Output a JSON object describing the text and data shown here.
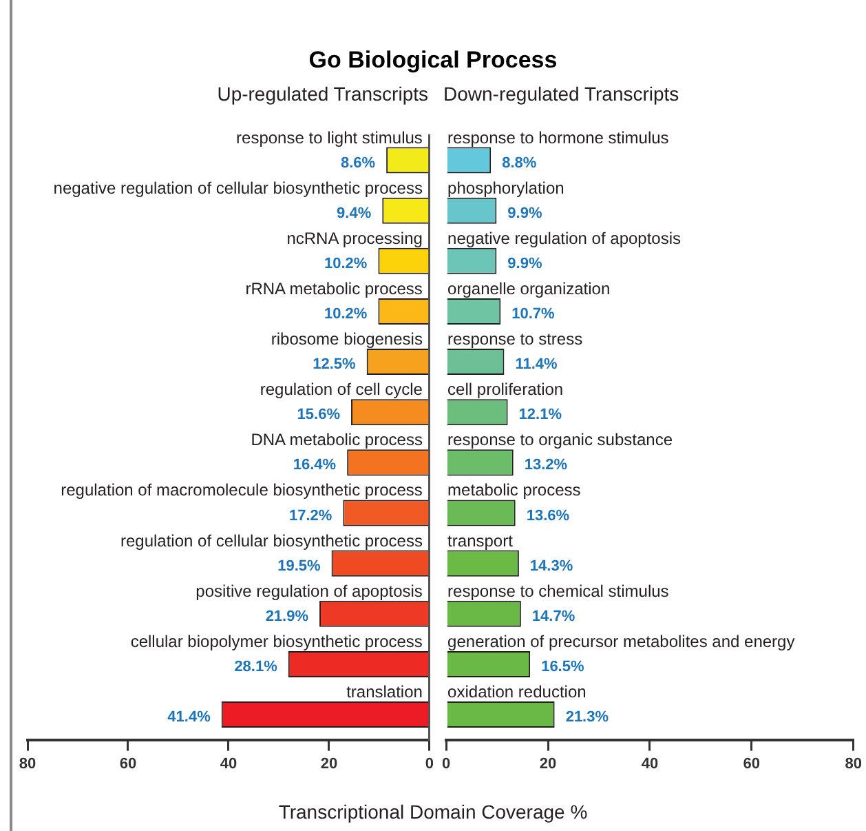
{
  "chart_data": [
    {
      "type": "bar",
      "orientation": "horizontal",
      "title": "Go Biological Process",
      "subtitle": "Up-regulated Transcripts",
      "xlabel": "Transcriptional Domain Coverage %",
      "categories": [
        "response to light stimulus",
        "negative regulation of cellular biosynthetic process",
        "ncRNA processing",
        "rRNA metabolic process",
        "ribosome biogenesis",
        "regulation of cell cycle",
        "DNA metabolic process",
        "regulation of macromolecule biosynthetic process",
        "regulation of cellular biosynthetic process",
        "positive regulation of apoptosis",
        "cellular biopolymer biosynthetic process",
        "translation"
      ],
      "values": [
        8.6,
        9.4,
        10.2,
        10.2,
        12.5,
        15.6,
        16.4,
        17.2,
        19.5,
        21.9,
        28.1,
        41.4
      ],
      "value_labels": [
        "8.6%",
        "9.4%",
        "10.2%",
        "10.2%",
        "12.5%",
        "15.6%",
        "16.4%",
        "17.2%",
        "19.5%",
        "21.9%",
        "28.1%",
        "41.4%"
      ],
      "colors": [
        "#f3eb19",
        "#f7e817",
        "#fcd20b",
        "#fbb817",
        "#f7a21f",
        "#f68b1f",
        "#f47321",
        "#f15a24",
        "#ef4b23",
        "#ee3a24",
        "#ed2a24",
        "#ec1c24"
      ],
      "xlim": [
        80,
        0
      ],
      "xticks": [
        80,
        60,
        40,
        20,
        0
      ],
      "grid": false
    },
    {
      "type": "bar",
      "orientation": "horizontal",
      "subtitle": "Down-regulated Transcripts",
      "categories": [
        "response to hormone stimulus",
        "phosphorylation",
        "negative regulation of apoptosis",
        "organelle organization",
        "response to stress",
        "cell proliferation",
        "response to organic substance",
        "metabolic process",
        "transport",
        "response to chemical stimulus",
        "generation of precursor metabolites and energy",
        "oxidation reduction"
      ],
      "values": [
        8.8,
        9.9,
        9.9,
        10.7,
        11.4,
        12.1,
        13.2,
        13.6,
        14.3,
        14.7,
        16.5,
        21.3
      ],
      "value_labels": [
        "8.8%",
        "9.9%",
        "9.9%",
        "10.7%",
        "11.4%",
        "12.1%",
        "13.2%",
        "13.6%",
        "14.3%",
        "14.7%",
        "16.5%",
        "21.3%"
      ],
      "colors": [
        "#63c8dc",
        "#66c6cc",
        "#6cc5b6",
        "#6dc5a4",
        "#6dc095",
        "#6cbe7c",
        "#6bbd6a",
        "#6aba55",
        "#6aba45",
        "#6ab845",
        "#6ab845",
        "#6ab845"
      ],
      "xlim": [
        0,
        80
      ],
      "xticks": [
        0,
        20,
        40,
        60,
        80
      ],
      "grid": false
    }
  ]
}
